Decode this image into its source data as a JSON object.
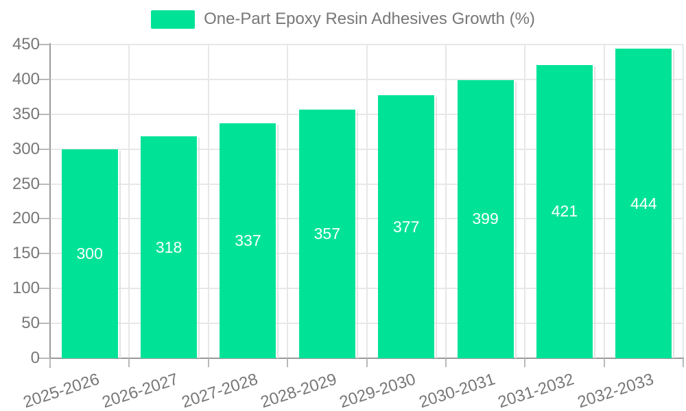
{
  "legend": {
    "label": "One-Part Epoxy Resin Adhesives Growth (%)"
  },
  "chart_data": {
    "type": "bar",
    "title": "One-Part Epoxy Resin Adhesives Growth (%)",
    "categories": [
      "2025-2026",
      "2026-2027",
      "2027-2028",
      "2028-2029",
      "2029-2030",
      "2030-2031",
      "2031-2032",
      "2032-2033"
    ],
    "values": [
      300,
      318,
      337,
      357,
      377,
      399,
      421,
      444
    ],
    "xlabel": "",
    "ylabel": "",
    "ylim": [
      0,
      450
    ],
    "ytick_step": 50,
    "yticks": [
      0,
      50,
      100,
      150,
      200,
      250,
      300,
      350,
      400,
      450
    ],
    "grid": true,
    "legend_position": "top-center",
    "x_label_rotation_deg": -18,
    "value_labels": "centered-in-bar"
  },
  "colors": {
    "bar": "#00E396",
    "background": "#ffffff",
    "grid": "#e7e7e7",
    "axis": "#9a9a9a",
    "tick": "#b9b9b9",
    "text": "#777777",
    "value_text": "#ffffff"
  }
}
